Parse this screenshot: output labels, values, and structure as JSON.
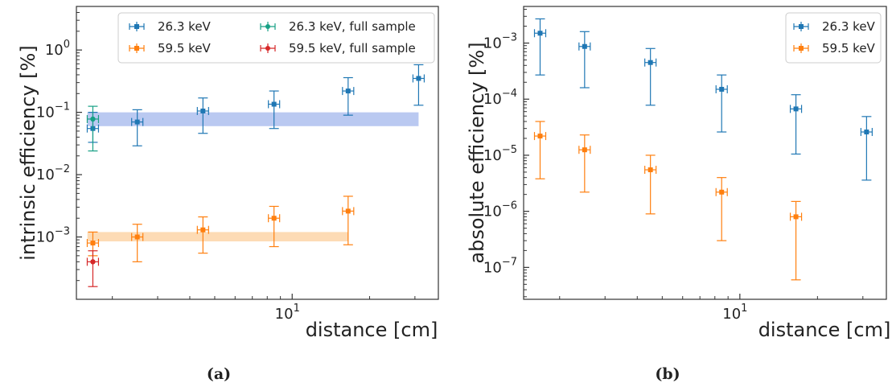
{
  "panels": [
    {
      "caption": "(a)"
    },
    {
      "caption": "(b)"
    }
  ],
  "chart_data": [
    {
      "type": "scatter",
      "panel": "(a)",
      "title": "",
      "xlabel": "distance [cm]",
      "ylabel": "intrinsic efficiency [%]",
      "xscale": "log",
      "yscale": "log",
      "xlim": [
        1.45,
        37
      ],
      "ylim": [
        0.0001,
        5
      ],
      "xticks": [
        {
          "value": 10,
          "base": "10",
          "exp": "1"
        }
      ],
      "yticks": [
        {
          "value": 0.001,
          "base": "10",
          "exp": "−3"
        },
        {
          "value": 0.01,
          "base": "10",
          "exp": "−2"
        },
        {
          "value": 0.1,
          "base": "10",
          "exp": "−1"
        },
        {
          "value": 1,
          "base": "10",
          "exp": "0"
        }
      ],
      "grid": false,
      "legend": {
        "placement": "top-right",
        "columns": 2
      },
      "bands": [
        {
          "series": "26.3 keV",
          "x": [
            1.6,
            31
          ],
          "y": [
            0.06,
            0.1
          ],
          "color": "#aec0ef"
        },
        {
          "series": "59.5 keV",
          "x": [
            1.6,
            16.5
          ],
          "y": [
            0.00085,
            0.0012
          ],
          "color": "#fdd5a8"
        }
      ],
      "series": [
        {
          "name": "26.3 keV",
          "color": "#1f77b4",
          "marker": "square",
          "points": [
            {
              "x": 1.68,
              "y": 0.055,
              "ylo": 0.033,
              "yhi": 0.1
            },
            {
              "x": 2.5,
              "y": 0.07,
              "ylo": 0.029,
              "yhi": 0.11
            },
            {
              "x": 4.5,
              "y": 0.105,
              "ylo": 0.046,
              "yhi": 0.17
            },
            {
              "x": 8.5,
              "y": 0.135,
              "ylo": 0.055,
              "yhi": 0.22
            },
            {
              "x": 16.5,
              "y": 0.22,
              "ylo": 0.09,
              "yhi": 0.36
            },
            {
              "x": 31,
              "y": 0.35,
              "ylo": 0.13,
              "yhi": 0.58
            }
          ]
        },
        {
          "name": "59.5 keV",
          "color": "#ff7f0e",
          "marker": "square",
          "points": [
            {
              "x": 1.68,
              "y": 0.0008,
              "ylo": 0.0005,
              "yhi": 0.0012
            },
            {
              "x": 2.5,
              "y": 0.001,
              "ylo": 0.0004,
              "yhi": 0.0016
            },
            {
              "x": 4.5,
              "y": 0.0013,
              "ylo": 0.00055,
              "yhi": 0.0021
            },
            {
              "x": 8.5,
              "y": 0.002,
              "ylo": 0.0007,
              "yhi": 0.0031
            },
            {
              "x": 16.5,
              "y": 0.0026,
              "ylo": 0.00075,
              "yhi": 0.0045
            }
          ]
        },
        {
          "name": "26.3 keV, full sample",
          "color": "#17a085",
          "marker": "circle",
          "points": [
            {
              "x": 1.68,
              "y": 0.078,
              "ylo": 0.024,
              "yhi": 0.125
            }
          ]
        },
        {
          "name": "59.5 keV, full sample",
          "color": "#d62728",
          "marker": "circle",
          "points": [
            {
              "x": 1.68,
              "y": 0.0004,
              "ylo": 0.00016,
              "yhi": 0.0006
            }
          ]
        }
      ]
    },
    {
      "type": "scatter",
      "panel": "(b)",
      "title": "",
      "xlabel": "distance [cm]",
      "ylabel": "absolute efficiency [%]",
      "xscale": "log",
      "yscale": "log",
      "xlim": [
        1.45,
        37
      ],
      "ylim": [
        2.7e-08,
        0.0045
      ],
      "xticks": [
        {
          "value": 10,
          "base": "10",
          "exp": "1"
        }
      ],
      "yticks": [
        {
          "value": 1e-07,
          "base": "10",
          "exp": "−7"
        },
        {
          "value": 1e-06,
          "base": "10",
          "exp": "−6"
        },
        {
          "value": 1e-05,
          "base": "10",
          "exp": "−5"
        },
        {
          "value": 0.0001,
          "base": "10",
          "exp": "−4"
        },
        {
          "value": 0.001,
          "base": "10",
          "exp": "−3"
        }
      ],
      "grid": false,
      "legend": {
        "placement": "top-right",
        "columns": 1
      },
      "bands": [],
      "series": [
        {
          "name": "26.3 keV",
          "color": "#1f77b4",
          "marker": "square",
          "points": [
            {
              "x": 1.68,
              "y": 0.0015,
              "ylo": 0.00027,
              "yhi": 0.0027
            },
            {
              "x": 2.5,
              "y": 0.00087,
              "ylo": 0.00016,
              "yhi": 0.0016
            },
            {
              "x": 4.5,
              "y": 0.00045,
              "ylo": 7.8e-05,
              "yhi": 0.0008
            },
            {
              "x": 8.5,
              "y": 0.00015,
              "ylo": 2.6e-05,
              "yhi": 0.00027
            },
            {
              "x": 16.5,
              "y": 6.7e-05,
              "ylo": 1.05e-05,
              "yhi": 0.00012
            },
            {
              "x": 31,
              "y": 2.6e-05,
              "ylo": 3.6e-06,
              "yhi": 4.9e-05
            }
          ]
        },
        {
          "name": "59.5 keV",
          "color": "#ff7f0e",
          "marker": "square",
          "points": [
            {
              "x": 1.68,
              "y": 2.2e-05,
              "ylo": 3.8e-06,
              "yhi": 4e-05
            },
            {
              "x": 2.5,
              "y": 1.25e-05,
              "ylo": 2.2e-06,
              "yhi": 2.3e-05
            },
            {
              "x": 4.5,
              "y": 5.5e-06,
              "ylo": 9e-07,
              "yhi": 1e-05
            },
            {
              "x": 8.5,
              "y": 2.2e-06,
              "ylo": 3e-07,
              "yhi": 4e-06
            },
            {
              "x": 16.5,
              "y": 8e-07,
              "ylo": 6e-08,
              "yhi": 1.5e-06
            }
          ]
        }
      ]
    }
  ]
}
